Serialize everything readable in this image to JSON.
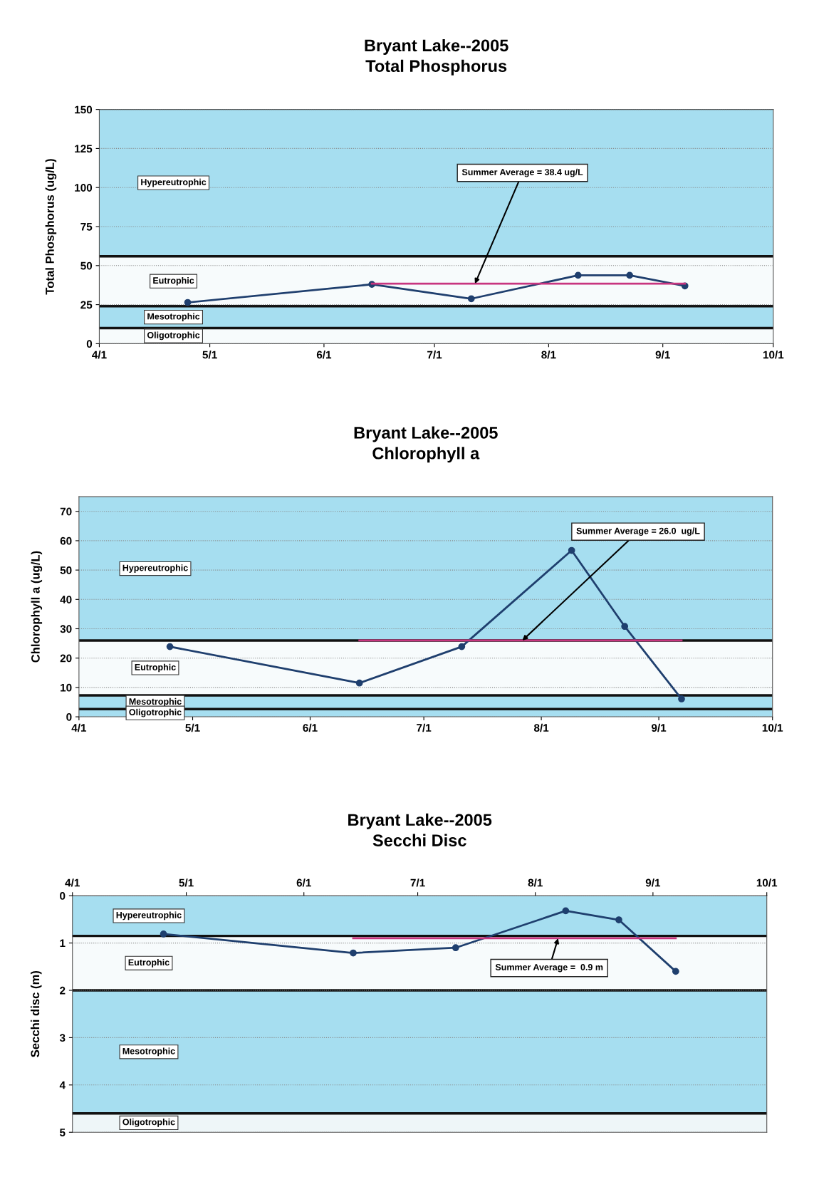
{
  "chart_data": [
    {
      "type": "line",
      "title": "Bryant Lake--2005\nTotal Phosphorus",
      "ylabel": "Total Phosphorus (ug/L)",
      "xlim": [
        "2005-04-01",
        "2005-10-01"
      ],
      "xticks": [
        {
          "value": "2005-04-01",
          "label": "4/1"
        },
        {
          "value": "2005-05-01",
          "label": "5/1"
        },
        {
          "value": "2005-06-01",
          "label": "6/1"
        },
        {
          "value": "2005-07-01",
          "label": "7/1"
        },
        {
          "value": "2005-08-01",
          "label": "8/1"
        },
        {
          "value": "2005-09-01",
          "label": "9/1"
        },
        {
          "value": "2005-10-01",
          "label": "10/1"
        }
      ],
      "ylim": [
        0,
        150
      ],
      "yticks": [
        0,
        25,
        50,
        75,
        100,
        125,
        150
      ],
      "grid": "y",
      "marker": "circle",
      "line_style": "solid",
      "series": [
        {
          "color": "#1f3f6e",
          "x": [
            "2005-04-25",
            "2005-06-14",
            "2005-07-11",
            "2005-08-09",
            "2005-08-23",
            "2005-09-07"
          ],
          "values": [
            26.4,
            38,
            28.8,
            43.8,
            43.8,
            37
          ]
        },
        {
          "color": "#c8357f",
          "marker": "none",
          "x": [
            "2005-06-14",
            "2005-09-07"
          ],
          "values": [
            38.4,
            38.4
          ]
        }
      ],
      "bands": [
        {
          "axis": "y",
          "from": 56,
          "to": 150,
          "label": "Hypereutrophic",
          "color": "#a6def0"
        },
        {
          "axis": "y",
          "from": 24,
          "to": 56,
          "label": "Eutrophic",
          "color": "#f7fbfc"
        },
        {
          "axis": "y",
          "from": 10,
          "to": 24,
          "label": "Mesotrophic",
          "color": "#a6def0"
        },
        {
          "axis": "y",
          "from": 0,
          "to": 10,
          "label": "Oligotrophic",
          "color": "#f7fbfc"
        }
      ],
      "ref_lines": [
        {
          "axis": "y",
          "value": 56,
          "color": "#111111"
        },
        {
          "axis": "y",
          "value": 24,
          "color": "#111111"
        },
        {
          "axis": "y",
          "value": 10,
          "color": "#111111"
        }
      ],
      "annotations": [
        {
          "text": "Summer Average = 38.4 ug/L",
          "x": "2005-07-12",
          "y": 38.4
        }
      ]
    },
    {
      "type": "line",
      "title": "Bryant Lake--2005\nChlorophyll a",
      "ylabel": "Chlorophyll a (ug/L)",
      "xlim": [
        "2005-04-01",
        "2005-10-01"
      ],
      "xticks": [
        {
          "value": "2005-04-01",
          "label": "4/1"
        },
        {
          "value": "2005-05-01",
          "label": "5/1"
        },
        {
          "value": "2005-06-01",
          "label": "6/1"
        },
        {
          "value": "2005-07-01",
          "label": "7/1"
        },
        {
          "value": "2005-08-01",
          "label": "8/1"
        },
        {
          "value": "2005-09-01",
          "label": "9/1"
        },
        {
          "value": "2005-10-01",
          "label": "10/1"
        }
      ],
      "ylim": [
        0,
        75
      ],
      "yticks": [
        0,
        10,
        20,
        30,
        40,
        50,
        60,
        70
      ],
      "grid": "y",
      "marker": "circle",
      "line_style": "solid",
      "series": [
        {
          "color": "#1f3f6e",
          "x": [
            "2005-04-25",
            "2005-06-14",
            "2005-07-11",
            "2005-08-09",
            "2005-08-23",
            "2005-09-07"
          ],
          "values": [
            23.9,
            11.5,
            23.9,
            56.7,
            30.8,
            6.1
          ]
        },
        {
          "color": "#c8357f",
          "marker": "none",
          "x": [
            "2005-06-14",
            "2005-09-07"
          ],
          "values": [
            26.0,
            26.0
          ]
        }
      ],
      "bands": [
        {
          "axis": "y",
          "from": 26,
          "to": 75,
          "label": "Hypereutrophic",
          "color": "#a6def0"
        },
        {
          "axis": "y",
          "from": 7.3,
          "to": 26,
          "label": "Eutrophic",
          "color": "#f7fbfc"
        },
        {
          "axis": "y",
          "from": 2.6,
          "to": 7.3,
          "label": "Mesotrophic",
          "color": "#a6def0"
        },
        {
          "axis": "y",
          "from": 0,
          "to": 2.6,
          "label": "Oligotrophic",
          "color": "#a6def0"
        }
      ],
      "ref_lines": [
        {
          "axis": "y",
          "value": 26,
          "color": "#111111"
        },
        {
          "axis": "y",
          "value": 7.3,
          "color": "#111111"
        },
        {
          "axis": "y",
          "value": 2.6,
          "color": "#111111"
        }
      ],
      "annotations": [
        {
          "text": "Summer Average = 26.0  ug/L",
          "x": "2005-07-27",
          "y": 26.0
        }
      ]
    },
    {
      "type": "line",
      "title": "Bryant Lake--2005\nSecchi Disc",
      "ylabel": "Secchi disc (m)",
      "xlim": [
        "2005-04-01",
        "2005-10-01"
      ],
      "xticks": [
        {
          "value": "2005-04-01",
          "label": "4/1"
        },
        {
          "value": "2005-05-01",
          "label": "5/1"
        },
        {
          "value": "2005-06-01",
          "label": "6/1"
        },
        {
          "value": "2005-07-01",
          "label": "7/1"
        },
        {
          "value": "2005-08-01",
          "label": "8/1"
        },
        {
          "value": "2005-09-01",
          "label": "9/1"
        },
        {
          "value": "2005-10-01",
          "label": "10/1"
        }
      ],
      "ylim": [
        5,
        0
      ],
      "yticks": [
        0,
        1,
        2,
        3,
        4,
        5
      ],
      "grid": "y",
      "marker": "circle",
      "line_style": "solid",
      "series": [
        {
          "color": "#1f3f6e",
          "x": [
            "2005-04-25",
            "2005-06-14",
            "2005-07-11",
            "2005-08-09",
            "2005-08-23",
            "2005-09-07"
          ],
          "values": [
            0.81,
            1.21,
            1.1,
            0.32,
            0.51,
            1.6
          ]
        },
        {
          "color": "#c8357f",
          "marker": "none",
          "x": [
            "2005-06-14",
            "2005-09-07"
          ],
          "values": [
            0.9,
            0.9
          ]
        }
      ],
      "bands": [
        {
          "axis": "y",
          "from": 0,
          "to": 0.85,
          "label": "Hypereutrophic",
          "color": "#a6def0"
        },
        {
          "axis": "y",
          "from": 0.85,
          "to": 2,
          "label": "Eutrophic",
          "color": "#f7fbfc"
        },
        {
          "axis": "y",
          "from": 2,
          "to": 4.6,
          "label": "Mesotrophic",
          "color": "#a6def0"
        },
        {
          "axis": "y",
          "from": 4.6,
          "to": 5,
          "label": "Oligotrophic",
          "color": "#eef6f8"
        }
      ],
      "ref_lines": [
        {
          "axis": "y",
          "value": 0.85,
          "color": "#111111"
        },
        {
          "axis": "y",
          "value": 2,
          "color": "#111111"
        },
        {
          "axis": "y",
          "value": 4.6,
          "color": "#111111"
        }
      ],
      "annotations": [
        {
          "text": "Summer Average =  0.9 m",
          "x": "2005-08-07",
          "y": 0.9
        }
      ]
    }
  ]
}
